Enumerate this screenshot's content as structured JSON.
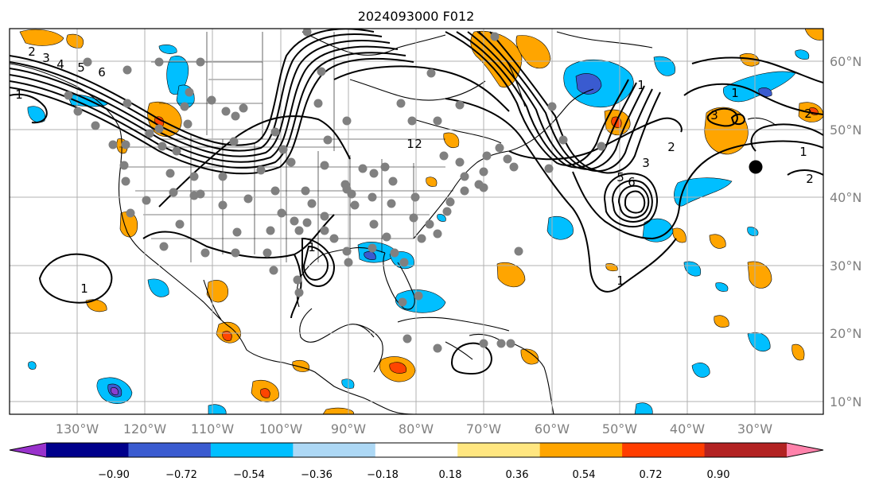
{
  "title": "2024093000 F012",
  "lon_labels": [
    "130°W",
    "120°W",
    "110°W",
    "100°W",
    "90°W",
    "80°W",
    "70°W",
    "60°W",
    "50°W",
    "40°W",
    "30°W"
  ],
  "lat_labels": [
    "60°N",
    "50°N",
    "40°N",
    "30°N",
    "20°N",
    "10°N"
  ],
  "colorbar": {
    "tick_labels": [
      "−0.90",
      "−0.72",
      "−0.54",
      "−0.36",
      "−0.18",
      "0.18",
      "0.36",
      "0.54",
      "0.72",
      "0.90"
    ],
    "colors": [
      "#9932cc",
      "#00008b",
      "#3a5bd0",
      "#00bfff",
      "#add8f5",
      "#ffffff",
      "#ffe680",
      "#ffa500",
      "#ff3d00",
      "#b22222",
      "#ff82ab"
    ]
  },
  "contour_labels": [
    "1",
    "2",
    "3",
    "4",
    "5",
    "6",
    "1",
    "1",
    "1",
    "2",
    "1",
    "2",
    "3",
    "1",
    "2",
    "3",
    "5",
    "6",
    "1",
    "2"
  ],
  "shading_colors": {
    "orange": "#ffa500",
    "red": "#ff4500",
    "lightblue": "#00bfff",
    "blue": "#3a5bd0",
    "purple": "#8a3fd0"
  }
}
